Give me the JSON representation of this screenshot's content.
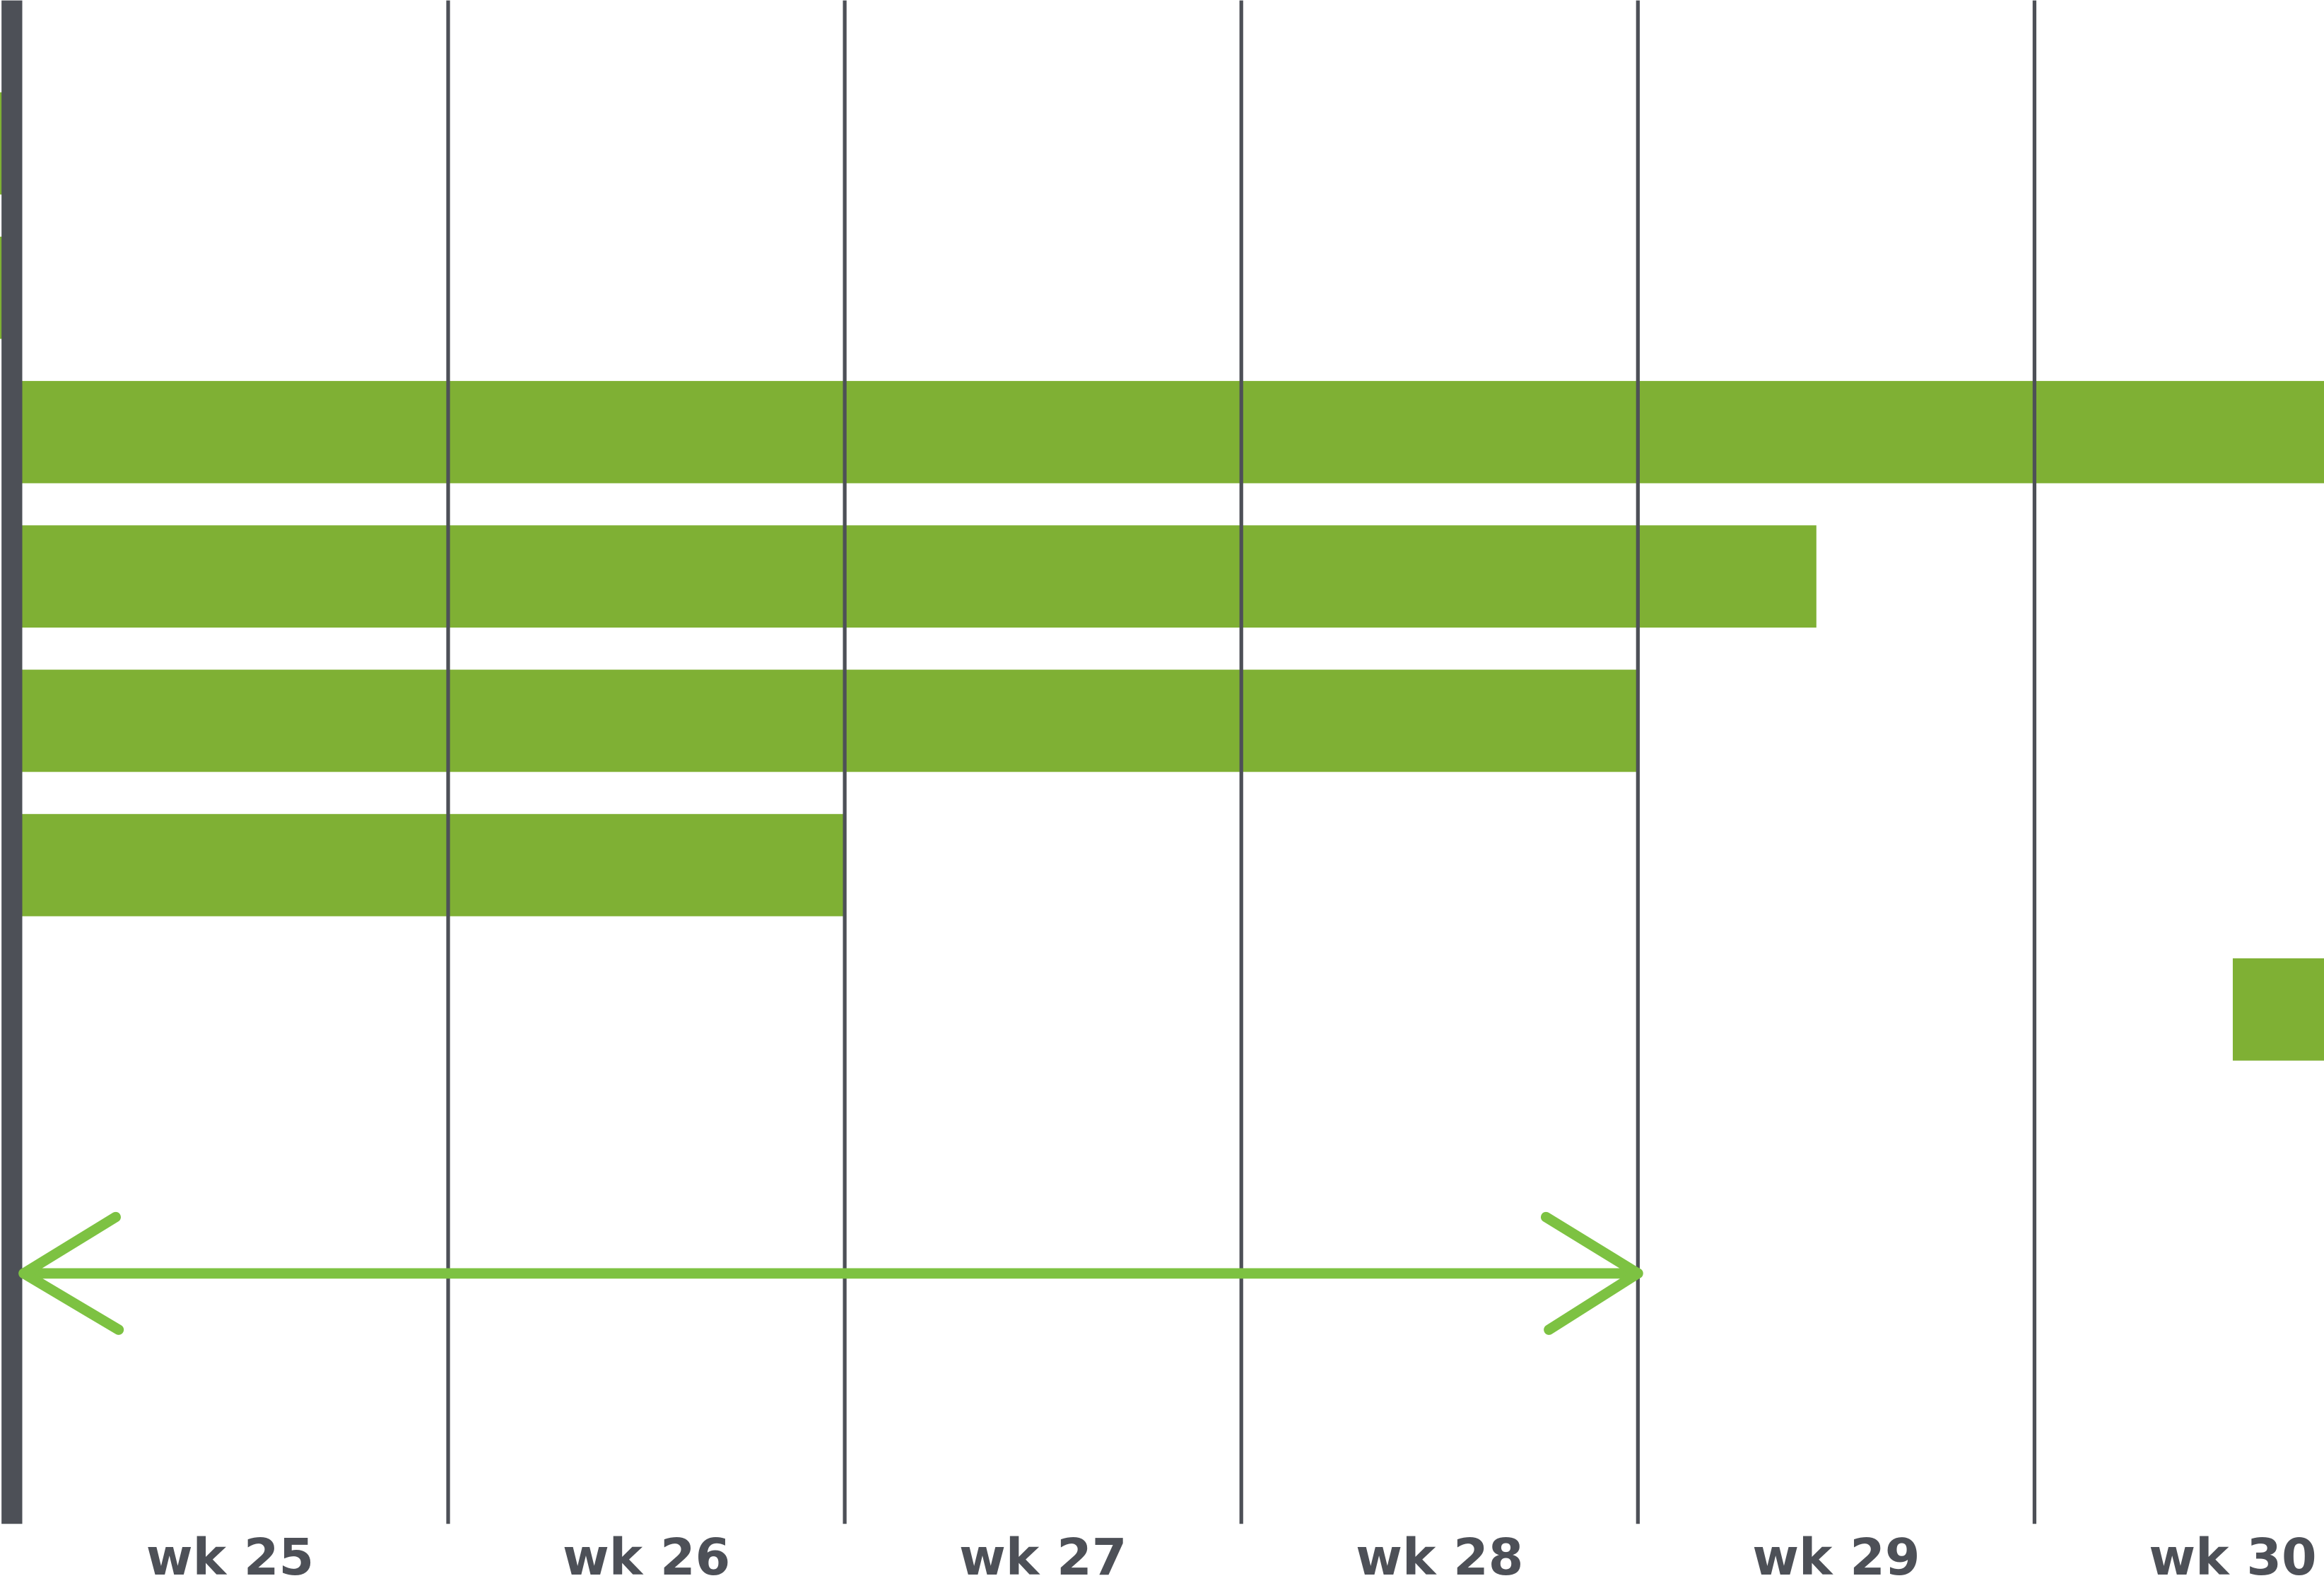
{
  "chart_data": {
    "type": "gantt",
    "categories": [
      "wk 25",
      "wk 26",
      "wk 27",
      "wk 28",
      "wk 29",
      "wk 30"
    ],
    "xlim": [
      24.87,
      30.73
    ],
    "xticks": [
      24.9,
      26,
      27,
      28,
      29,
      30
    ],
    "grid": true,
    "color": "#7fb034",
    "axis_color": "#4d5057",
    "bars": [
      {
        "start": 24.87,
        "end": 24.9
      },
      {
        "start": 24.87,
        "end": 24.9
      },
      {
        "start": 24.9,
        "end": 30.73
      },
      {
        "start": 24.9,
        "end": 29.45
      },
      {
        "start": 24.9,
        "end": 29
      },
      {
        "start": 24.9,
        "end": 27
      },
      {
        "start": 30.5,
        "end": 30.73
      }
    ],
    "arrow": {
      "start": 24.9,
      "end": 29,
      "color": "#7dc242"
    }
  }
}
